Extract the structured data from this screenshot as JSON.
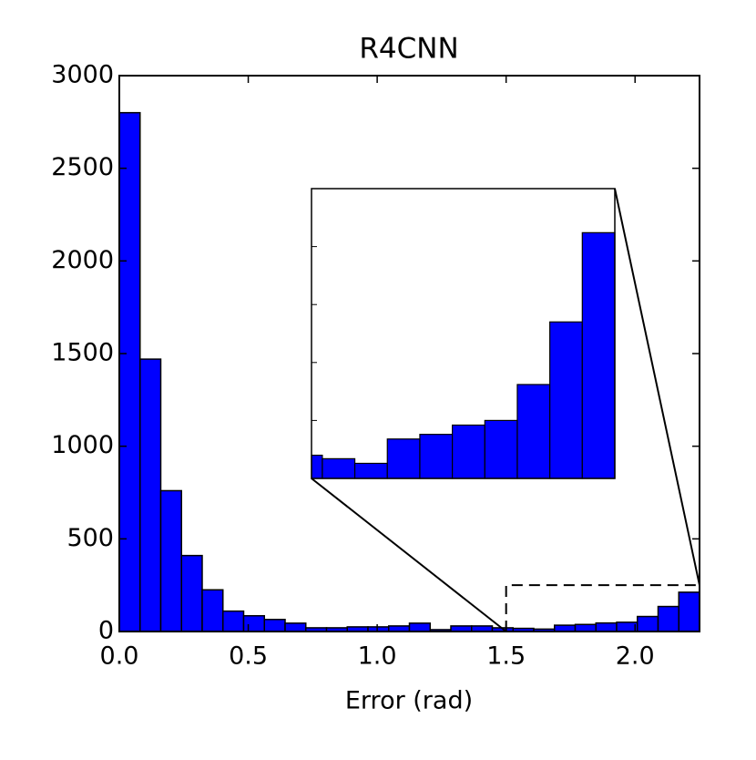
{
  "chart_data": {
    "type": "histogram",
    "title": "R4CNN",
    "x_label": "Error (rad)",
    "bins": [
      0,
      0.0804,
      0.1607,
      0.2411,
      0.3214,
      0.4018,
      0.4821,
      0.5625,
      0.6429,
      0.7232,
      0.8036,
      0.8839,
      0.9643,
      1.0446,
      1.125,
      1.2054,
      1.2857,
      1.3661,
      1.4464,
      1.5268,
      1.6071,
      1.6875,
      1.7679,
      1.8482,
      1.9286,
      2.0089,
      2.0893,
      2.1696,
      2.25
    ],
    "values": [
      2800,
      1470,
      760,
      410,
      225,
      110,
      85,
      65,
      45,
      20,
      20,
      25,
      25,
      30,
      45,
      10,
      30,
      30,
      20,
      17,
      13,
      34,
      38,
      46,
      50,
      81,
      135,
      212
    ],
    "color": "#0000ff",
    "xlim": [
      0,
      2.25
    ],
    "ylim": [
      0,
      3000
    ],
    "xticks": [
      {
        "value": 0,
        "label": "0.0"
      },
      0.5,
      {
        "value": 1,
        "label": "1.0"
      },
      1.5,
      {
        "value": 2,
        "label": "2.0"
      }
    ],
    "yticks": [
      0,
      500,
      1000,
      1500,
      2000,
      2500,
      3000
    ],
    "inset": {
      "xlim": [
        1.5,
        2.25
      ],
      "ylim": [
        0,
        250
      ],
      "yticks": [
        50,
        100,
        150,
        200
      ]
    }
  }
}
